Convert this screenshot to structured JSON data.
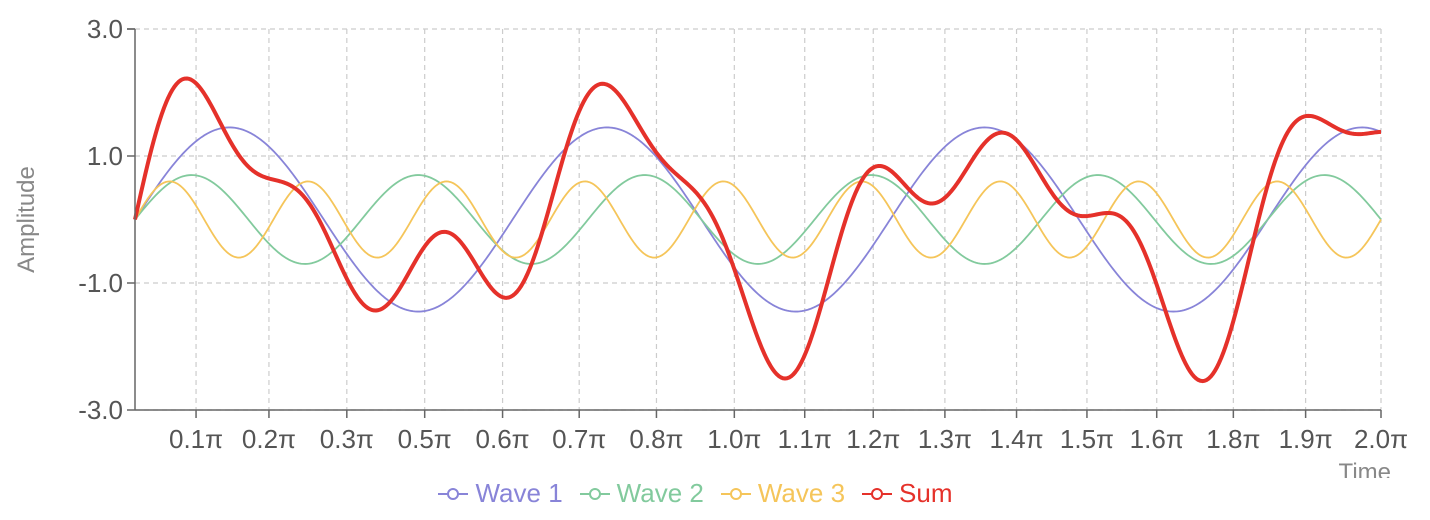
{
  "chart_data": {
    "type": "line",
    "xlabel": "Time",
    "ylabel": "Amplitude",
    "ylim": [
      -3,
      3
    ],
    "y_ticks": [
      "3.0",
      "1.0",
      "-1.0",
      "-3.0"
    ],
    "y_tick_values": [
      3,
      1,
      -1,
      -3
    ],
    "x_range_pi": [
      0,
      2
    ],
    "x_ticks": [
      "0.1π",
      "0.2π",
      "0.3π",
      "0.5π",
      "0.6π",
      "0.7π",
      "0.8π",
      "1.0π",
      "1.1π",
      "1.2π",
      "1.3π",
      "1.4π",
      "1.5π",
      "1.6π",
      "1.8π",
      "1.9π",
      "2.0π"
    ],
    "x_tick_values_pi": [
      0.098,
      0.215,
      0.34,
      0.465,
      0.59,
      0.713,
      0.837,
      0.962,
      1.075,
      1.185,
      1.3,
      1.415,
      1.528,
      1.64,
      1.763,
      1.879,
      2.0
    ],
    "grid": true,
    "legend_position": "bottom-center",
    "series": [
      {
        "name": "Wave 1",
        "color": "#8884d8",
        "amplitude": 1.45,
        "frequency": 3.3,
        "stroke": "thin"
      },
      {
        "name": "Wave 2",
        "color": "#82ca9d",
        "amplitude": 0.7,
        "frequency": 5.5,
        "stroke": "thin"
      },
      {
        "name": "Wave 3",
        "color": "#f5c55a",
        "amplitude": 0.6,
        "frequency": 9.0,
        "stroke": "thin"
      },
      {
        "name": "Sum",
        "color": "#e5312a",
        "components": [
          "Wave 1",
          "Wave 2",
          "Wave 3"
        ],
        "stroke": "thick"
      }
    ]
  }
}
